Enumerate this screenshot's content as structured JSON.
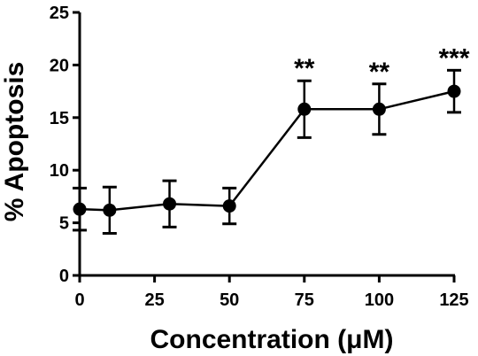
{
  "chart_data": {
    "type": "line",
    "xlabel": "Concentration (μM)",
    "ylabel": "% Apoptosis",
    "xlim": [
      0,
      125
    ],
    "ylim": [
      0,
      25
    ],
    "x_ticks": [
      0,
      25,
      50,
      75,
      100,
      125
    ],
    "y_ticks": [
      0,
      5,
      10,
      15,
      20,
      25
    ],
    "grid": false,
    "series": [
      {
        "x": [
          0,
          10,
          30,
          50,
          75,
          100,
          125
        ],
        "y": [
          6.3,
          6.2,
          6.8,
          6.6,
          15.8,
          15.8,
          17.5
        ],
        "error": [
          2.0,
          2.2,
          2.2,
          1.7,
          2.7,
          2.4,
          2.0
        ]
      }
    ],
    "annotations": [
      {
        "x": 75,
        "text": "**"
      },
      {
        "x": 100,
        "text": "**"
      },
      {
        "x": 125,
        "text": "***"
      }
    ]
  }
}
